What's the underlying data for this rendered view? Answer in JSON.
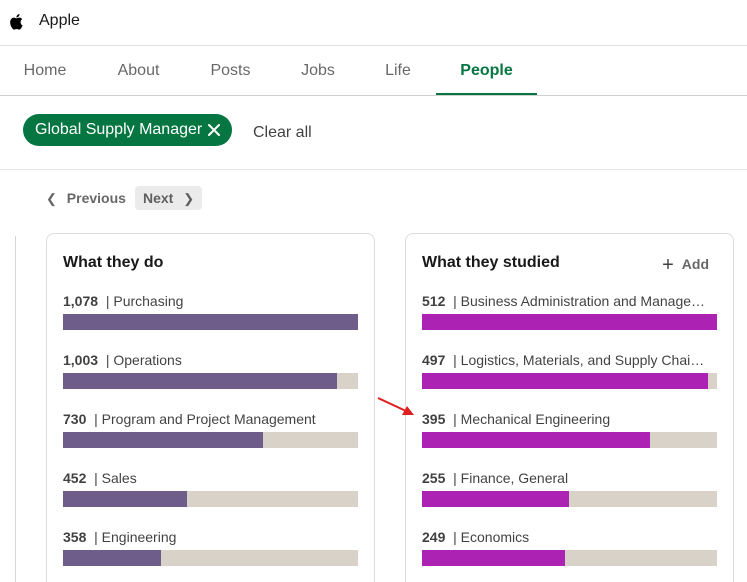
{
  "header": {
    "company": "Apple",
    "logo_icon": "apple-logo-icon"
  },
  "tabs": [
    {
      "label": "Home",
      "active": false
    },
    {
      "label": "About",
      "active": false
    },
    {
      "label": "Posts",
      "active": false
    },
    {
      "label": "Jobs",
      "active": false
    },
    {
      "label": "Life",
      "active": false
    },
    {
      "label": "People",
      "active": true
    }
  ],
  "filter": {
    "chip_label": "Global Supply Manager",
    "chip_close_icon": "close-icon",
    "clear_all": "Clear all"
  },
  "pager": {
    "previous": "Previous",
    "next": "Next",
    "previous_icon": "chevron-left-icon",
    "next_icon": "chevron-right-icon"
  },
  "colors": {
    "accent": "#057642",
    "do_bar": "#6e5c8a",
    "studied_bar": "#ac23b4",
    "track": "#d9d2c8",
    "annotation_arrow": "#e02020"
  },
  "cards": {
    "what_they_do": {
      "title": "What they do",
      "max": 1078,
      "items": [
        {
          "count": "1,078",
          "label": "Purchasing",
          "value": 1078
        },
        {
          "count": "1,003",
          "label": "Operations",
          "value": 1003
        },
        {
          "count": "730",
          "label": "Program and Project Management",
          "value": 730
        },
        {
          "count": "452",
          "label": "Sales",
          "value": 452
        },
        {
          "count": "358",
          "label": "Engineering",
          "value": 358
        }
      ]
    },
    "what_they_studied": {
      "title": "What they studied",
      "add_label": "Add",
      "add_icon": "plus-icon",
      "max": 512,
      "items": [
        {
          "count": "512",
          "label": "Business Administration and Manage…",
          "value": 512
        },
        {
          "count": "497",
          "label": "Logistics, Materials, and Supply Chai…",
          "value": 497
        },
        {
          "count": "395",
          "label": "Mechanical Engineering",
          "value": 395
        },
        {
          "count": "255",
          "label": "Finance, General",
          "value": 255
        },
        {
          "count": "249",
          "label": "Economics",
          "value": 249
        }
      ]
    }
  }
}
